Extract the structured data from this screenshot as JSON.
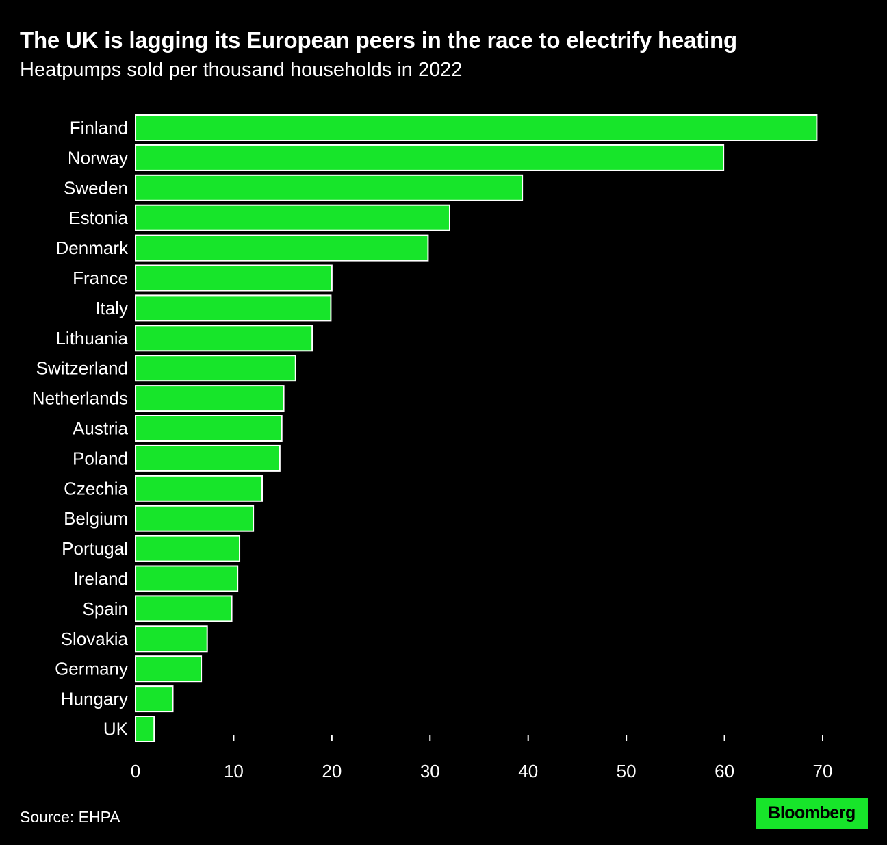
{
  "colors": {
    "background": "#000000",
    "bar_fill": "#17e52a",
    "bar_stroke": "#ffffff",
    "text": "#ffffff",
    "logo_bg": "#17e52a",
    "logo_text": "#000000"
  },
  "chart_data": {
    "type": "bar",
    "orientation": "horizontal",
    "title": "The UK is lagging its European peers in the race to electrify heating",
    "subtitle": "Heatpumps sold per thousand households in 2022",
    "categories": [
      "Finland",
      "Norway",
      "Sweden",
      "Estonia",
      "Denmark",
      "France",
      "Italy",
      "Lithuania",
      "Switzerland",
      "Netherlands",
      "Austria",
      "Poland",
      "Czechia",
      "Belgium",
      "Portugal",
      "Ireland",
      "Spain",
      "Slovakia",
      "Germany",
      "Hungary",
      "UK"
    ],
    "values": [
      69.4,
      59.9,
      39.4,
      32.0,
      29.8,
      20.0,
      19.9,
      18.0,
      16.3,
      15.1,
      14.9,
      14.7,
      12.9,
      12.0,
      10.6,
      10.4,
      9.8,
      7.3,
      6.7,
      3.8,
      1.9
    ],
    "xlim": [
      0,
      70
    ],
    "xticks": [
      0,
      10,
      20,
      30,
      40,
      50,
      60,
      70
    ],
    "xlabel": "",
    "ylabel": "",
    "grid": false
  },
  "footer": {
    "source": "Source: EHPA",
    "logo": "Bloomberg"
  }
}
